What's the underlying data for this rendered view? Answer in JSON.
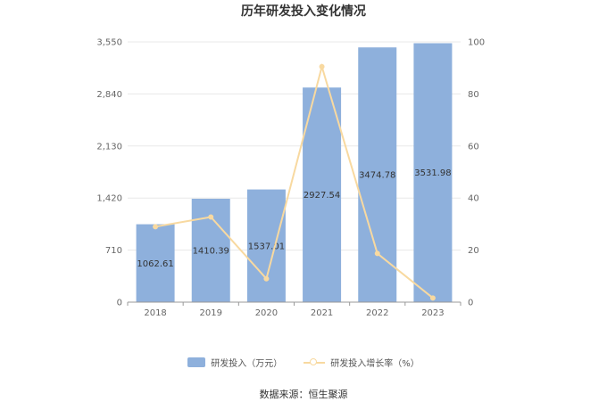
{
  "chart_data": {
    "type": "bar",
    "title": "历年研发投入变化情况",
    "categories": [
      "2018",
      "2019",
      "2020",
      "2021",
      "2022",
      "2023"
    ],
    "series": [
      {
        "name": "研发投入（万元）",
        "type": "bar",
        "axis": "left",
        "color": "#8eb0dc",
        "values": [
          1062.61,
          1410.39,
          1537.01,
          2927.54,
          3474.78,
          3531.98
        ],
        "labels": [
          "1062.61",
          "1410.39",
          "1537.01",
          "2927.54",
          "3474.78",
          "3531.98"
        ]
      },
      {
        "name": "研发投入增长率（%）",
        "type": "line",
        "axis": "right",
        "color": "#f8d9a0",
        "values": [
          29,
          32.7,
          9,
          90.5,
          18.7,
          1.6
        ]
      }
    ],
    "y_left": {
      "ylim": [
        0,
        3550
      ],
      "ticks": [
        0,
        710,
        1420,
        2130,
        2840,
        3550
      ],
      "tick_labels": [
        "0",
        "710",
        "1,420",
        "2,130",
        "2,840",
        "3,550"
      ]
    },
    "y_right": {
      "ylim": [
        0,
        100
      ],
      "ticks": [
        0,
        20,
        40,
        60,
        80,
        100
      ],
      "tick_labels": [
        "0",
        "20",
        "40",
        "60",
        "80",
        "100"
      ]
    },
    "grid": true,
    "legend_position": "bottom-center"
  },
  "source": "数据来源：恒生聚源"
}
